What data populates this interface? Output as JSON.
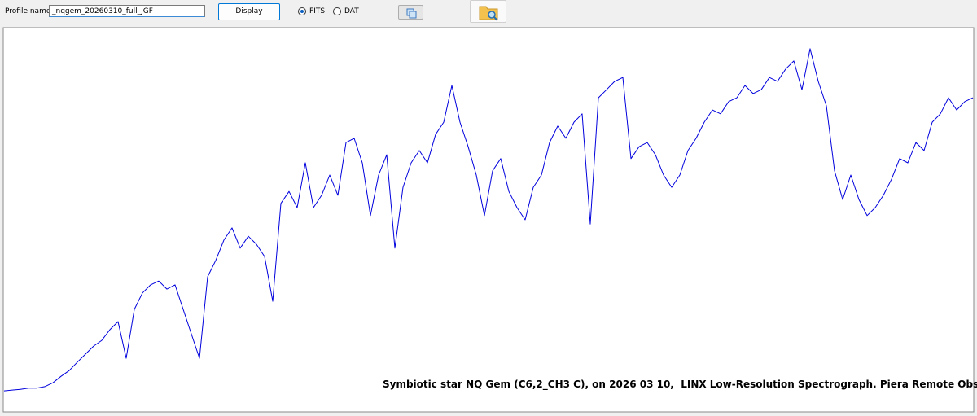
{
  "toolbar": {
    "profile_label": "Profile name :",
    "profile_value": "_nqgem_20260310_full_JGF",
    "display_button": "Display",
    "radio_options": [
      {
        "label": "FITS",
        "selected": true
      },
      {
        "label": "DAT",
        "selected": false
      }
    ]
  },
  "chart_data": {
    "type": "line",
    "annotation": "Symbiotic star NQ Gem (C6,2_CH3 C), on 2026 03 10,  LINX Low-Resolution Spectrograph. Piera Remote Observatory.",
    "color": "#0000dd",
    "ylim": [
      0,
      100
    ],
    "values": [
      5.3,
      5.5,
      5.7,
      6.0,
      6.0,
      6.4,
      7.4,
      9.1,
      10.6,
      12.8,
      14.9,
      17.0,
      18.5,
      21.3,
      23.4,
      13.8,
      26.6,
      30.9,
      33.0,
      34.0,
      31.9,
      33.0,
      26.6,
      20.2,
      13.8,
      35.1,
      39.4,
      44.7,
      47.9,
      42.6,
      45.7,
      43.6,
      40.4,
      28.7,
      54.3,
      57.4,
      53.2,
      64.9,
      53.2,
      56.4,
      61.7,
      56.4,
      70.2,
      71.3,
      64.9,
      51.1,
      61.7,
      67.0,
      42.6,
      58.5,
      64.9,
      68.1,
      64.9,
      72.3,
      75.5,
      85.1,
      75.5,
      69.1,
      61.7,
      51.1,
      62.8,
      66.0,
      57.4,
      53.2,
      50.0,
      58.5,
      61.7,
      70.2,
      74.5,
      71.3,
      75.5,
      77.7,
      48.9,
      81.9,
      84.0,
      86.2,
      87.2,
      66.0,
      69.1,
      70.2,
      67.0,
      61.7,
      58.5,
      61.7,
      68.1,
      71.3,
      75.5,
      78.7,
      77.7,
      80.9,
      81.9,
      85.1,
      83.0,
      84.0,
      87.2,
      86.2,
      89.4,
      91.5,
      84.0,
      94.7,
      86.2,
      79.8,
      62.8,
      55.3,
      61.7,
      55.3,
      51.1,
      53.2,
      56.4,
      60.6,
      66.0,
      64.9,
      70.2,
      68.1,
      75.5,
      77.7,
      81.9,
      78.7,
      80.9,
      81.9
    ]
  }
}
